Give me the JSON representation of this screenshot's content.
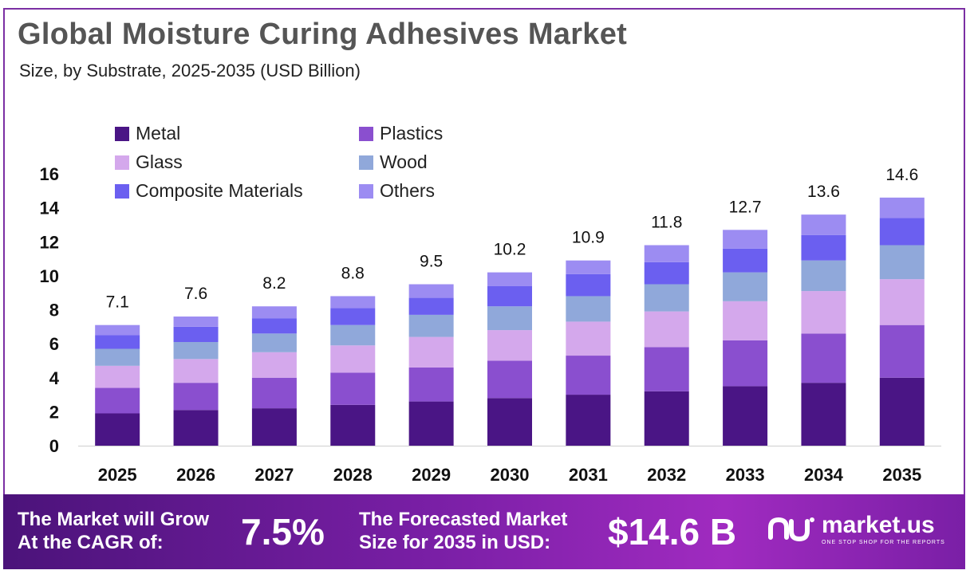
{
  "header": {
    "title": "Global Moisture Curing Adhesives Market",
    "subtitle": "Size, by Substrate, 2025-2035 (USD Billion)"
  },
  "chart_data": {
    "type": "bar",
    "stacked": true,
    "categories": [
      "2025",
      "2026",
      "2027",
      "2028",
      "2029",
      "2030",
      "2031",
      "2032",
      "2033",
      "2034",
      "2035"
    ],
    "totals": [
      7.1,
      7.6,
      8.2,
      8.8,
      9.5,
      10.2,
      10.9,
      11.8,
      12.7,
      13.6,
      14.6
    ],
    "series": [
      {
        "name": "Metal",
        "color": "#4a1585",
        "values": [
          1.9,
          2.1,
          2.2,
          2.4,
          2.6,
          2.8,
          3.0,
          3.2,
          3.5,
          3.7,
          4.0
        ]
      },
      {
        "name": "Plastics",
        "color": "#8a4fcf",
        "values": [
          1.5,
          1.6,
          1.8,
          1.9,
          2.0,
          2.2,
          2.3,
          2.6,
          2.7,
          2.9,
          3.1
        ]
      },
      {
        "name": "Glass",
        "color": "#d4a8ec",
        "values": [
          1.3,
          1.4,
          1.5,
          1.6,
          1.8,
          1.8,
          2.0,
          2.1,
          2.3,
          2.5,
          2.7
        ]
      },
      {
        "name": "Wood",
        "color": "#90a8da",
        "values": [
          1.0,
          1.0,
          1.1,
          1.2,
          1.3,
          1.4,
          1.5,
          1.6,
          1.7,
          1.8,
          2.0
        ]
      },
      {
        "name": "Composite Materials",
        "color": "#6b5ff0",
        "values": [
          0.8,
          0.9,
          0.9,
          1.0,
          1.0,
          1.2,
          1.3,
          1.3,
          1.4,
          1.5,
          1.6
        ]
      },
      {
        "name": "Others",
        "color": "#9c8cf2",
        "values": [
          0.6,
          0.6,
          0.7,
          0.7,
          0.8,
          0.8,
          0.8,
          1.0,
          1.1,
          1.2,
          1.2
        ]
      }
    ],
    "y_ticks": [
      0,
      2,
      4,
      6,
      8,
      10,
      12,
      14,
      16
    ],
    "ylim": [
      0,
      16
    ],
    "xlabel": "",
    "ylabel": "",
    "legend_position": "top-left",
    "grid": false
  },
  "footer": {
    "cagr_label_line1": "The Market will Grow",
    "cagr_label_line2": "At the CAGR of:",
    "cagr_value": "7.5%",
    "forecast_label_line1": "The Forecasted Market",
    "forecast_label_line2": "Size for 2035 in USD:",
    "forecast_value": "$14.6 B",
    "logo_name": "market.us",
    "logo_tagline": "ONE STOP SHOP FOR THE REPORTS"
  }
}
